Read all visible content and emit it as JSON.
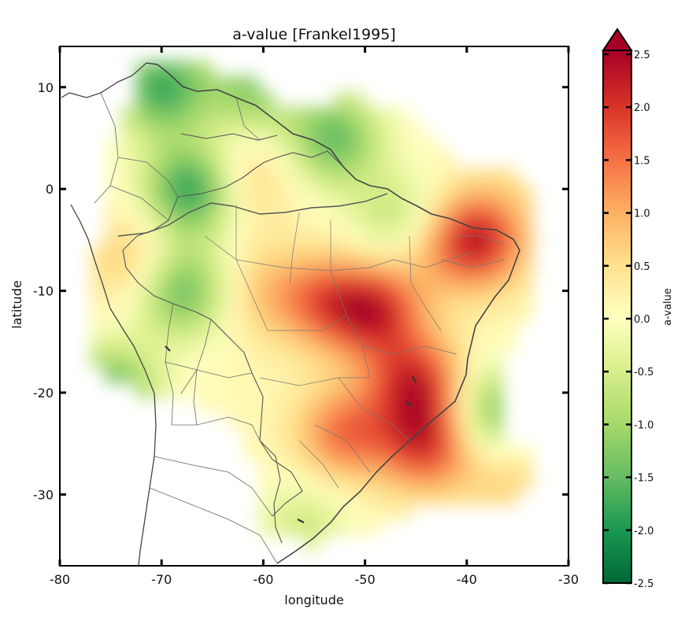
{
  "chart_data": {
    "type": "heatmap",
    "title": "a-value [Frankel1995]",
    "xlabel": "longitude",
    "ylabel": "latitude",
    "xlim": [
      -80,
      -30
    ],
    "ylim": [
      -37,
      14
    ],
    "x_ticks": [
      -80,
      -70,
      -60,
      -50,
      -40,
      -30
    ],
    "x_tick_labels": [
      "-80",
      "-70",
      "-60",
      "-50",
      "-40",
      "-30"
    ],
    "y_ticks": [
      10,
      0,
      -10,
      -20,
      -30
    ],
    "y_tick_labels": [
      "10",
      "0",
      "-10",
      "-20",
      "-30"
    ],
    "colorbar": {
      "label": "a-value",
      "range": [
        -2.5,
        2.5
      ],
      "extend": "max",
      "cmap": "RdYlGn_r",
      "ticks": [
        2.5,
        2.0,
        1.5,
        1.0,
        0.5,
        0.0,
        -0.5,
        -1.0,
        -1.5,
        -2.0,
        -2.5
      ],
      "tick_labels": [
        "2.5",
        "2.0",
        "1.5",
        "1.0",
        "0.5",
        "0.0",
        "-0.5",
        "-1.0",
        "-1.5",
        "-2.0",
        "-2.5"
      ]
    },
    "background": "map of South America with country and state borders",
    "field_hotspots": [
      {
        "lon": -39,
        "lat": -5,
        "value": 2.2
      },
      {
        "lon": -49,
        "lat": -12,
        "value": 2.0
      },
      {
        "lon": -45,
        "lat": -19,
        "value": 2.0
      },
      {
        "lon": -44,
        "lat": -25,
        "value": 1.9
      },
      {
        "lon": -54,
        "lat": -11,
        "value": 1.4
      },
      {
        "lon": -52,
        "lat": -24,
        "value": 1.5
      },
      {
        "lon": -73,
        "lat": -7,
        "value": 0.8
      },
      {
        "lon": -62,
        "lat": 1,
        "value": 0.8
      },
      {
        "lon": -60,
        "lat": -10,
        "value": 0.7
      },
      {
        "lon": -36,
        "lat": -28,
        "value": 0.7
      },
      {
        "lon": -35,
        "lat": 2,
        "value": 0.3
      },
      {
        "lon": -44,
        "lat": -6,
        "value": 0.5
      },
      {
        "lon": -67,
        "lat": 0,
        "value": -2.0
      },
      {
        "lon": -68,
        "lat": -10,
        "value": -1.5
      },
      {
        "lon": -70,
        "lat": 10,
        "value": -1.8
      },
      {
        "lon": -61,
        "lat": 10,
        "value": -1.2
      },
      {
        "lon": -53,
        "lat": 5,
        "value": -1.5
      },
      {
        "lon": -75,
        "lat": -20,
        "value": -1.6
      },
      {
        "lon": -37,
        "lat": -22,
        "value": -1.4
      },
      {
        "lon": -47,
        "lat": -3,
        "value": -0.8
      },
      {
        "lon": -56,
        "lat": -33,
        "value": -0.6
      }
    ]
  }
}
